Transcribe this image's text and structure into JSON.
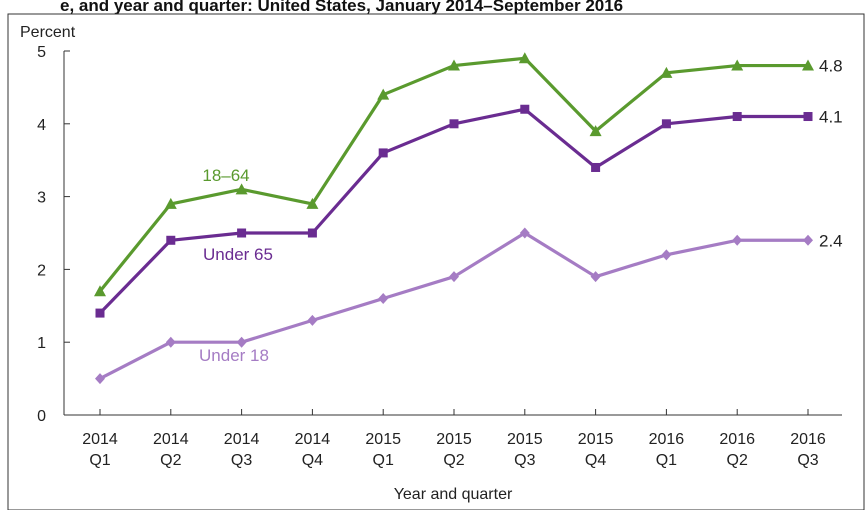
{
  "chart_data": {
    "type": "line",
    "title_partial": "e, and year and quarter: United States, January 2014–September 2016",
    "ylabel": "Percent",
    "xlabel": "Year and quarter",
    "ylim": [
      0,
      5
    ],
    "yticks": [
      "0",
      "1",
      "2",
      "3",
      "4",
      "5"
    ],
    "grid": false,
    "categories": [
      {
        "year": "2014",
        "quarter": "Q1"
      },
      {
        "year": "2014",
        "quarter": "Q2"
      },
      {
        "year": "2014",
        "quarter": "Q3"
      },
      {
        "year": "2014",
        "quarter": "Q4"
      },
      {
        "year": "2015",
        "quarter": "Q1"
      },
      {
        "year": "2015",
        "quarter": "Q2"
      },
      {
        "year": "2015",
        "quarter": "Q3"
      },
      {
        "year": "2015",
        "quarter": "Q4"
      },
      {
        "year": "2016",
        "quarter": "Q1"
      },
      {
        "year": "2016",
        "quarter": "Q2"
      },
      {
        "year": "2016",
        "quarter": "Q3"
      }
    ],
    "series": [
      {
        "name": "18–64",
        "color": "#5a9a2e",
        "marker": "triangle",
        "values": [
          1.7,
          2.9,
          3.1,
          2.9,
          4.4,
          4.8,
          4.9,
          3.9,
          4.7,
          4.8,
          4.8
        ],
        "end_label": "4.8"
      },
      {
        "name": "Under 65",
        "color": "#6a2c91",
        "marker": "square",
        "values": [
          1.4,
          2.4,
          2.5,
          2.5,
          3.6,
          4.0,
          4.2,
          3.4,
          4.0,
          4.1,
          4.1
        ],
        "end_label": "4.1"
      },
      {
        "name": "Under 18",
        "color": "#a57cc4",
        "marker": "diamond",
        "values": [
          0.5,
          1.0,
          1.0,
          1.3,
          1.6,
          1.9,
          2.5,
          1.9,
          2.2,
          2.4,
          2.4
        ],
        "end_label": "2.4"
      }
    ]
  }
}
